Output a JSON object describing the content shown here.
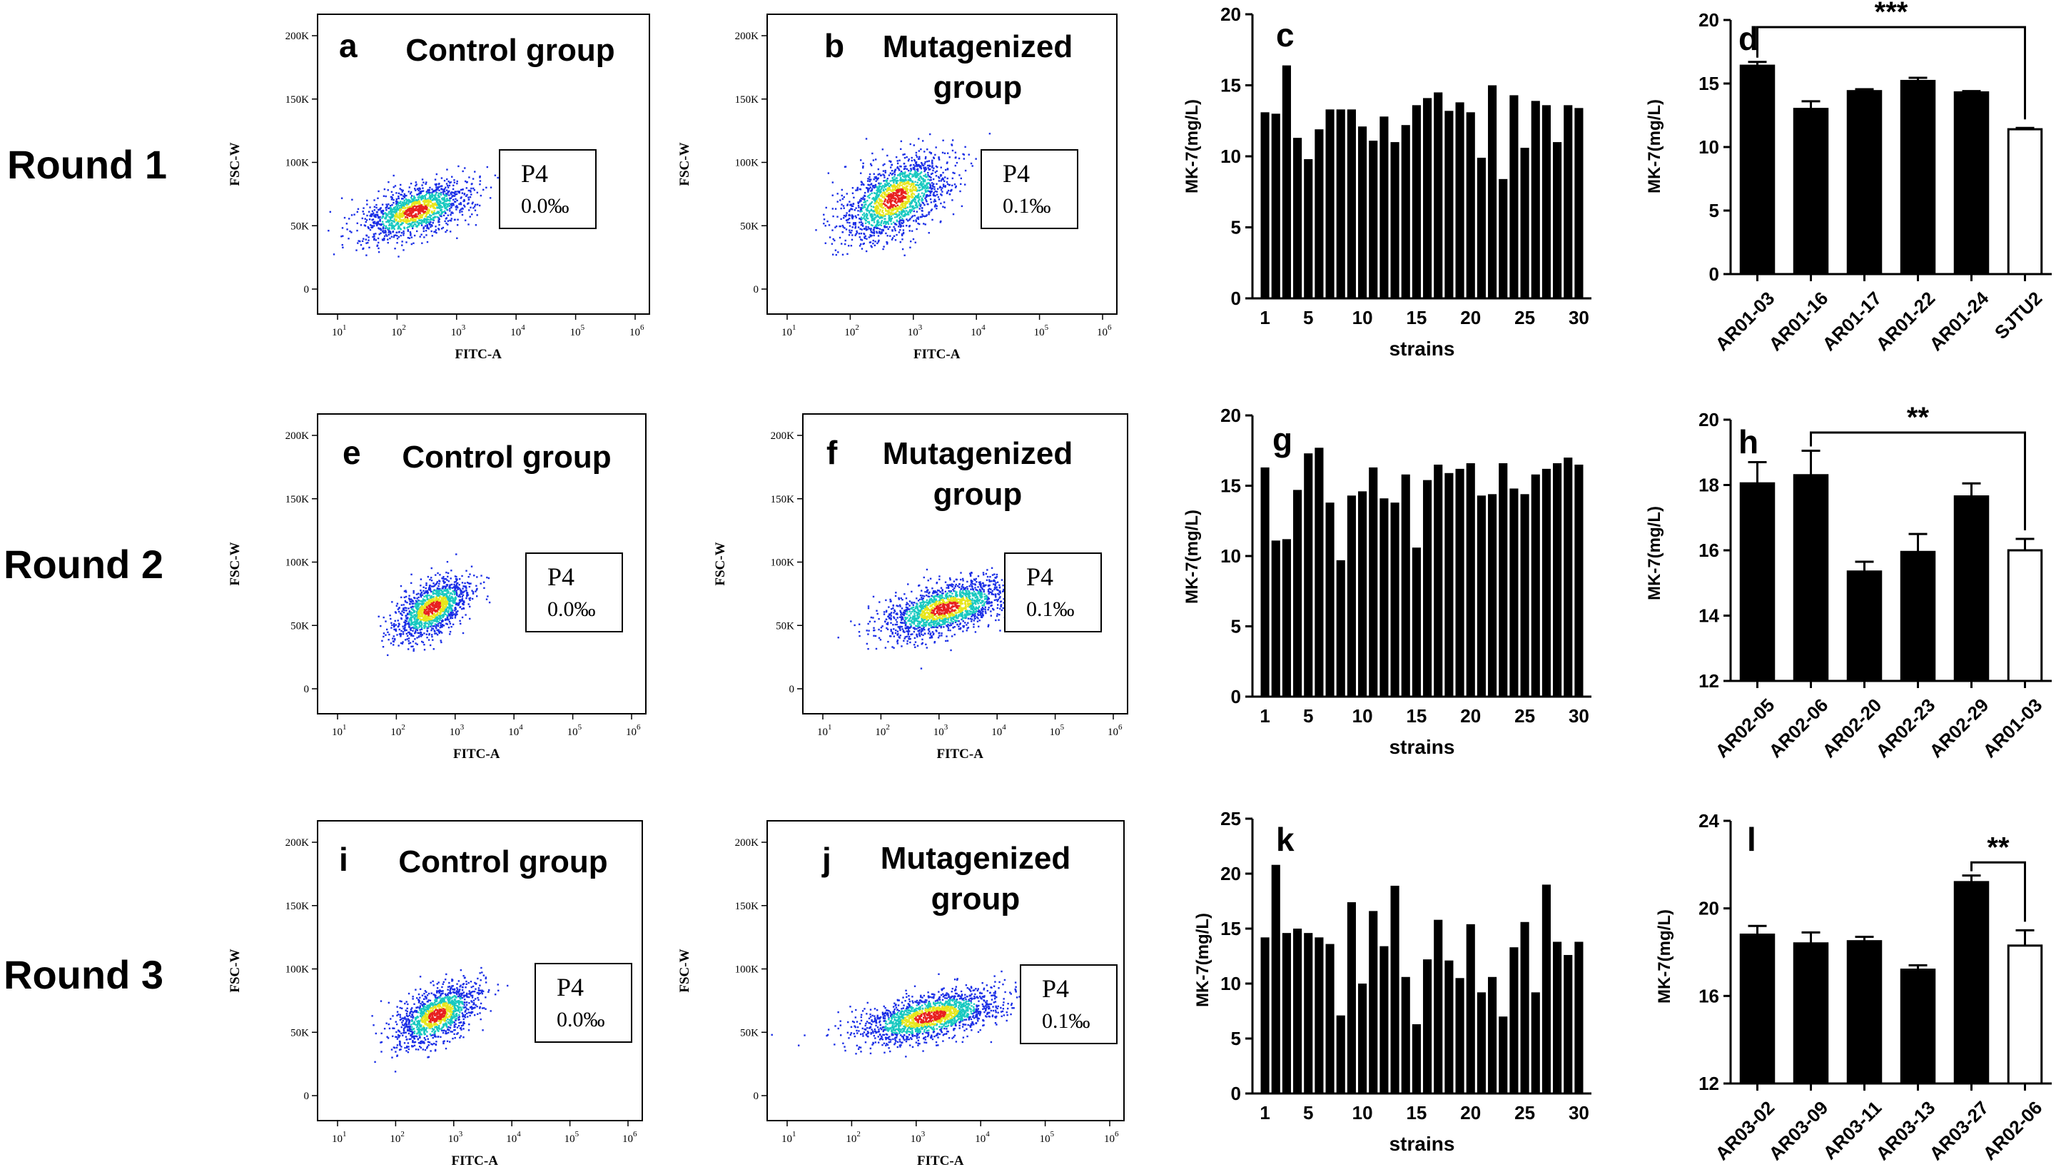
{
  "rounds": [
    "Round 1",
    "Round 2",
    "Round 3"
  ],
  "colors": {
    "ink": "#000000",
    "background": "#ffffff",
    "dot_low": "#1a2ee6",
    "dot_mid": "#18c9c0",
    "dot_high": "#e8e61c",
    "dot_peak": "#e82020"
  },
  "flow_panels": [
    {
      "letter": "a",
      "title": [
        "Control group"
      ],
      "gate": {
        "label": "P4",
        "value": "0.0‰"
      },
      "xlabel": "FITC-A",
      "ylabel": "FSC-W",
      "yticks": [
        "0",
        "50K",
        "100K",
        "150K",
        "200K"
      ],
      "xticks": [
        "10",
        "10",
        "10",
        "10",
        "10",
        "10"
      ],
      "xexps": [
        "1",
        "2",
        "3",
        "4",
        "5",
        "6"
      ],
      "cloud": {
        "cx_log": 2.3,
        "cy": 62,
        "sx": 0.45,
        "sy": 12,
        "n": 1400
      }
    },
    {
      "letter": "b",
      "title": [
        "Mutagenized",
        "group"
      ],
      "gate": {
        "label": "P4",
        "value": "0.1‰"
      },
      "xlabel": "FITC-A",
      "ylabel": "FSC-W",
      "yticks": [
        "0",
        "50K",
        "100K",
        "150K",
        "200K"
      ],
      "xticks": [
        "10",
        "10",
        "10",
        "10",
        "10",
        "10"
      ],
      "xexps": [
        "1",
        "2",
        "3",
        "4",
        "5",
        "6"
      ],
      "cloud": {
        "cx_log": 2.7,
        "cy": 72,
        "sx": 0.42,
        "sy": 18,
        "n": 1700
      }
    },
    {
      "letter": "e",
      "title": [
        "Control group"
      ],
      "gate": {
        "label": "P4",
        "value": "0.0‰"
      },
      "xlabel": "FITC-A",
      "ylabel": "FSC-W",
      "yticks": [
        "0",
        "50K",
        "100K",
        "150K",
        "200K"
      ],
      "xticks": [
        "10",
        "10",
        "10",
        "10",
        "10",
        "10"
      ],
      "xexps": [
        "1",
        "2",
        "3",
        "4",
        "5",
        "6"
      ],
      "cloud": {
        "cx_log": 2.6,
        "cy": 64,
        "sx": 0.32,
        "sy": 13,
        "n": 1300
      }
    },
    {
      "letter": "f",
      "title": [
        "Mutagenized",
        "group"
      ],
      "gate": {
        "label": "P4",
        "value": "0.1‰"
      },
      "xlabel": "FITC-A",
      "ylabel": "FSC-W",
      "yticks": [
        "0",
        "50K",
        "100K",
        "150K",
        "200K"
      ],
      "xticks": [
        "10",
        "10",
        "10",
        "10",
        "10",
        "10"
      ],
      "xexps": [
        "1",
        "2",
        "3",
        "4",
        "5",
        "6"
      ],
      "cloud": {
        "cx_log": 3.1,
        "cy": 64,
        "sx": 0.55,
        "sy": 12,
        "n": 1700
      }
    },
    {
      "letter": "i",
      "title": [
        "Control group"
      ],
      "gate": {
        "label": "P4",
        "value": "0.0‰"
      },
      "xlabel": "FITC-A",
      "ylabel": "FSC-W",
      "yticks": [
        "0",
        "50K",
        "100K",
        "150K",
        "200K"
      ],
      "xticks": [
        "10",
        "10",
        "10",
        "10",
        "10",
        "10"
      ],
      "xexps": [
        "1",
        "2",
        "3",
        "4",
        "5",
        "6"
      ],
      "cloud": {
        "cx_log": 2.7,
        "cy": 64,
        "sx": 0.35,
        "sy": 13,
        "n": 1300
      }
    },
    {
      "letter": "j",
      "title": [
        "Mutagenized",
        "group"
      ],
      "gate": {
        "label": "P4",
        "value": "0.1‰"
      },
      "xlabel": "FITC-A",
      "ylabel": "FSC-W",
      "yticks": [
        "0",
        "50K",
        "100K",
        "150K",
        "200K"
      ],
      "xticks": [
        "10",
        "10",
        "10",
        "10",
        "10",
        "10"
      ],
      "xexps": [
        "1",
        "2",
        "3",
        "4",
        "5",
        "6"
      ],
      "cloud": {
        "cx_log": 3.2,
        "cy": 63,
        "sx": 0.55,
        "sy": 11,
        "n": 1800
      }
    }
  ],
  "chart_data": [
    {
      "type": "bar",
      "panel": "c",
      "title": "c",
      "xlabel": "strains",
      "ylabel": "MK-7(mg/L)",
      "ylim": [
        0,
        20
      ],
      "yticks": [
        0,
        5,
        10,
        15,
        20
      ],
      "xticks": [
        1,
        5,
        10,
        15,
        20,
        25,
        30
      ],
      "values": [
        13.1,
        13.0,
        16.4,
        11.3,
        9.8,
        11.9,
        13.3,
        13.3,
        13.3,
        12.1,
        11.1,
        12.8,
        11.0,
        12.2,
        13.6,
        14.1,
        14.5,
        13.2,
        13.8,
        13.1,
        9.9,
        15.0,
        8.4,
        14.3,
        10.6,
        13.9,
        13.6,
        11.0,
        13.6,
        13.4
      ]
    },
    {
      "type": "bar",
      "panel": "d",
      "title": "d",
      "xlabel": "",
      "ylabel": "MK-7(mg/L)",
      "ylim": [
        0,
        20
      ],
      "yticks": [
        0,
        5,
        10,
        15,
        20
      ],
      "categories": [
        "AR01-03",
        "AR01-16",
        "AR01-17",
        "AR01-22",
        "AR01-24",
        "SJTU2"
      ],
      "values": [
        16.4,
        13.0,
        14.4,
        15.2,
        14.3,
        11.4
      ],
      "errors": [
        0.3,
        0.6,
        0.15,
        0.25,
        0.1,
        0.1
      ],
      "filled": [
        true,
        true,
        true,
        true,
        true,
        false
      ],
      "significance": {
        "label": "***",
        "from": 0,
        "to": 5
      }
    },
    {
      "type": "bar",
      "panel": "g",
      "title": "g",
      "xlabel": "strains",
      "ylabel": "MK-7(mg/L)",
      "ylim": [
        0,
        20
      ],
      "yticks": [
        0,
        5,
        10,
        15,
        20
      ],
      "xticks": [
        1,
        5,
        10,
        15,
        20,
        25,
        30
      ],
      "values": [
        16.3,
        11.1,
        11.2,
        14.7,
        17.3,
        17.7,
        13.8,
        9.7,
        14.3,
        14.6,
        16.3,
        14.1,
        13.8,
        15.8,
        10.6,
        15.4,
        16.5,
        15.9,
        16.2,
        16.6,
        14.3,
        14.4,
        16.6,
        14.8,
        14.4,
        15.8,
        16.2,
        16.6,
        17.0,
        16.5
      ]
    },
    {
      "type": "bar",
      "panel": "h",
      "title": "h",
      "xlabel": "",
      "ylabel": "MK-7(mg/L)",
      "ylim": [
        12,
        20
      ],
      "yticks": [
        12,
        14,
        16,
        18,
        20
      ],
      "categories": [
        "AR02-05",
        "AR02-06",
        "AR02-20",
        "AR02-23",
        "AR02-29",
        "AR01-03"
      ],
      "values": [
        18.05,
        18.3,
        15.35,
        15.95,
        17.65,
        16.0
      ],
      "errors": [
        0.65,
        0.75,
        0.3,
        0.55,
        0.4,
        0.35
      ],
      "filled": [
        true,
        true,
        true,
        true,
        true,
        false
      ],
      "significance": {
        "label": "**",
        "from": 1,
        "to": 5
      }
    },
    {
      "type": "bar",
      "panel": "k",
      "title": "k",
      "xlabel": "strains",
      "ylabel": "MK-7(mg/L)",
      "ylim": [
        0,
        25
      ],
      "yticks": [
        0,
        5,
        10,
        15,
        20,
        25
      ],
      "xticks": [
        1,
        5,
        10,
        15,
        20,
        25,
        30
      ],
      "values": [
        14.2,
        20.8,
        14.6,
        15.0,
        14.6,
        14.2,
        13.6,
        7.1,
        17.4,
        10.0,
        16.6,
        13.4,
        18.9,
        10.6,
        6.3,
        12.2,
        15.8,
        12.1,
        10.5,
        15.4,
        9.2,
        10.6,
        7.0,
        13.3,
        15.6,
        9.2,
        19.0,
        13.8,
        12.6,
        13.8
      ]
    },
    {
      "type": "bar",
      "panel": "l",
      "title": "l",
      "xlabel": "",
      "ylabel": "MK-7(mg/L)",
      "ylim": [
        12,
        24
      ],
      "yticks": [
        12,
        16,
        20,
        24
      ],
      "categories": [
        "AR03-02",
        "AR03-09",
        "AR03-11",
        "AR03-13",
        "AR03-27",
        "AR02-06"
      ],
      "values": [
        18.8,
        18.4,
        18.5,
        17.2,
        21.2,
        18.3
      ],
      "errors": [
        0.4,
        0.5,
        0.2,
        0.2,
        0.3,
        0.7
      ],
      "filled": [
        true,
        true,
        true,
        true,
        true,
        false
      ],
      "significance": {
        "label": "**",
        "from": 4,
        "to": 5
      }
    }
  ]
}
